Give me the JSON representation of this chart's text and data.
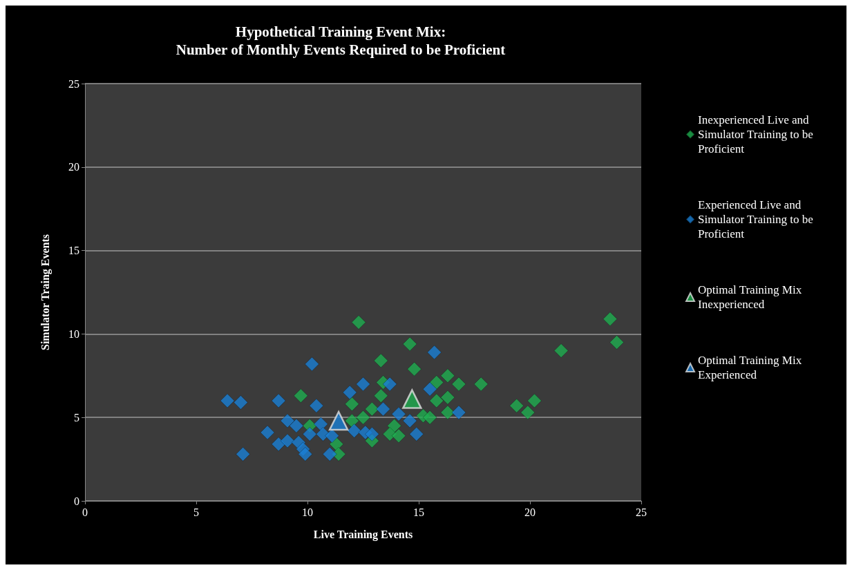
{
  "chart_data": {
    "type": "scatter",
    "title": "Hypothetical Training Event Mix:\nNumber of Monthly Events Required to be Proficient",
    "xlabel": "Live Training Events",
    "ylabel": "Simulator Traing Events",
    "xlim": [
      0,
      25
    ],
    "xticks": [
      0,
      5,
      10,
      15,
      20,
      25
    ],
    "ylim": [
      0,
      25
    ],
    "yticks": [
      0,
      5,
      10,
      15,
      20,
      25
    ],
    "grid": "y",
    "legend": "right",
    "marker": "diamond",
    "series": [
      {
        "name": "Inexperienced Live and Simulator Training to be Proficient",
        "color": "#1fae50",
        "x": [
          12.3,
          14.6,
          13.3,
          14.8,
          9.7,
          12.0,
          13.3,
          13.4,
          12.9,
          12.5,
          12.0,
          10.1,
          13.9,
          13.7,
          14.1,
          12.9,
          11.3,
          11.4,
          15.2,
          23.6,
          23.9,
          21.4,
          16.3,
          15.8,
          16.8,
          17.8,
          15.8,
          16.3,
          16.3,
          15.5,
          19.4,
          20.2,
          19.9
        ],
        "values": [
          10.7,
          9.4,
          8.4,
          7.9,
          6.3,
          5.8,
          6.3,
          7.1,
          5.5,
          5.0,
          4.8,
          4.5,
          4.5,
          4.0,
          3.9,
          3.6,
          3.4,
          2.8,
          5.1,
          10.9,
          9.5,
          9.0,
          7.5,
          7.1,
          7.0,
          7.0,
          6.0,
          6.2,
          5.3,
          5.0,
          5.7,
          6.0,
          5.3
        ]
      },
      {
        "name": "Experienced Live and Simulator Training to be Proficient",
        "color": "#1a7fd4",
        "x": [
          10.2,
          6.4,
          7.0,
          8.7,
          10.4,
          11.9,
          12.5,
          13.7,
          13.4,
          14.1,
          14.6,
          15.5,
          9.1,
          9.5,
          10.6,
          8.2,
          10.1,
          10.7,
          11.1,
          12.1,
          12.6,
          12.9,
          14.9,
          8.7,
          9.1,
          9.6,
          9.8,
          9.9,
          7.1,
          11.0,
          15.7,
          16.8
        ],
        "values": [
          8.2,
          6.0,
          5.9,
          6.0,
          5.7,
          6.5,
          7.0,
          7.0,
          5.5,
          5.2,
          4.8,
          6.7,
          4.8,
          4.5,
          4.6,
          4.1,
          4.0,
          4.0,
          3.9,
          4.2,
          4.1,
          4.0,
          4.0,
          3.4,
          3.6,
          3.5,
          3.1,
          2.8,
          2.8,
          2.8,
          8.9,
          5.3
        ]
      },
      {
        "name": "Optimal Training Mix\nInexperienced",
        "color": "#1fae50",
        "marker": "triangle",
        "x": [
          14.7
        ],
        "values": [
          6.1
        ]
      },
      {
        "name": "Optimal Training Mix\nExperienced",
        "color": "#1a7fd4",
        "marker": "triangle",
        "x": [
          11.4
        ],
        "values": [
          4.8
        ]
      }
    ]
  }
}
